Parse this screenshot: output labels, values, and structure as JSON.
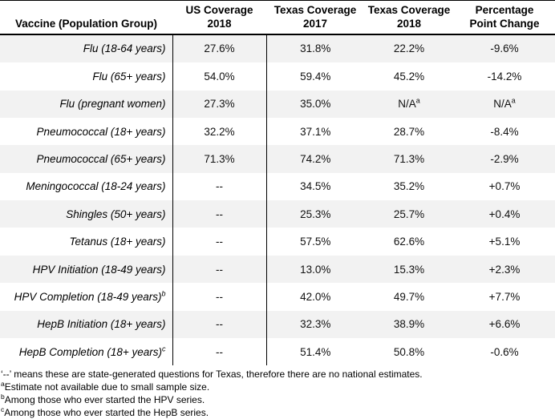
{
  "page": {
    "background_color": "#ffffff",
    "row_stripe_color": "#f2f2f2",
    "border_color": "#000000"
  },
  "table": {
    "headers": [
      "Vaccine (Population Group)",
      "US Coverage\n2018",
      "Texas Coverage\n2017",
      "Texas Coverage\n2018",
      "Percentage\nPoint Change"
    ],
    "rows": [
      {
        "vaccine": "Flu (18-64 years)",
        "vaccine_sup": "",
        "us_coverage_2018": "27.6%",
        "texas_coverage_2017": "31.8%",
        "texas_coverage_2018": "22.2%",
        "texas_2018_sup": "",
        "change": "-9.6%",
        "change_sup": ""
      },
      {
        "vaccine": "Flu (65+ years)",
        "vaccine_sup": "",
        "us_coverage_2018": "54.0%",
        "texas_coverage_2017": "59.4%",
        "texas_coverage_2018": "45.2%",
        "texas_2018_sup": "",
        "change": "-14.2%",
        "change_sup": ""
      },
      {
        "vaccine": "Flu (pregnant women)",
        "vaccine_sup": "",
        "us_coverage_2018": "27.3%",
        "texas_coverage_2017": "35.0%",
        "texas_coverage_2018": "N/A",
        "texas_2018_sup": "a",
        "change": "N/A",
        "change_sup": "a"
      },
      {
        "vaccine": "Pneumococcal (18+ years)",
        "vaccine_sup": "",
        "us_coverage_2018": "32.2%",
        "texas_coverage_2017": "37.1%",
        "texas_coverage_2018": "28.7%",
        "texas_2018_sup": "",
        "change": "-8.4%",
        "change_sup": ""
      },
      {
        "vaccine": "Pneumococcal (65+ years)",
        "vaccine_sup": "",
        "us_coverage_2018": "71.3%",
        "texas_coverage_2017": "74.2%",
        "texas_coverage_2018": "71.3%",
        "texas_2018_sup": "",
        "change": "-2.9%",
        "change_sup": ""
      },
      {
        "vaccine": "Meningococcal (18-24 years)",
        "vaccine_sup": "",
        "us_coverage_2018": "--",
        "texas_coverage_2017": "34.5%",
        "texas_coverage_2018": "35.2%",
        "texas_2018_sup": "",
        "change": "+0.7%",
        "change_sup": ""
      },
      {
        "vaccine": "Shingles (50+ years)",
        "vaccine_sup": "",
        "us_coverage_2018": "--",
        "texas_coverage_2017": "25.3%",
        "texas_coverage_2018": "25.7%",
        "texas_2018_sup": "",
        "change": "+0.4%",
        "change_sup": ""
      },
      {
        "vaccine": "Tetanus (18+ years)",
        "vaccine_sup": "",
        "us_coverage_2018": "--",
        "texas_coverage_2017": "57.5%",
        "texas_coverage_2018": "62.6%",
        "texas_2018_sup": "",
        "change": "+5.1%",
        "change_sup": ""
      },
      {
        "vaccine": "HPV Initiation (18-49 years)",
        "vaccine_sup": "",
        "us_coverage_2018": "--",
        "texas_coverage_2017": "13.0%",
        "texas_coverage_2018": "15.3%",
        "texas_2018_sup": "",
        "change": "+2.3%",
        "change_sup": ""
      },
      {
        "vaccine": "HPV Completion (18-49 years)",
        "vaccine_sup": "b",
        "us_coverage_2018": "--",
        "texas_coverage_2017": "42.0%",
        "texas_coverage_2018": "49.7%",
        "texas_2018_sup": "",
        "change": "+7.7%",
        "change_sup": ""
      },
      {
        "vaccine": "HepB Initiation (18+ years)",
        "vaccine_sup": "",
        "us_coverage_2018": "--",
        "texas_coverage_2017": "32.3%",
        "texas_coverage_2018": "38.9%",
        "texas_2018_sup": "",
        "change": "+6.6%",
        "change_sup": ""
      },
      {
        "vaccine": "HepB Completion (18+ years)",
        "vaccine_sup": "c",
        "us_coverage_2018": "--",
        "texas_coverage_2017": "51.4%",
        "texas_coverage_2018": "50.8%",
        "texas_2018_sup": "",
        "change": "-0.6%",
        "change_sup": ""
      }
    ]
  },
  "footnotes": [
    {
      "sup": "",
      "text": "‘--’ means these are state-generated questions for Texas, therefore there are no national estimates."
    },
    {
      "sup": "a",
      "text": "Estimate not available due to small sample size."
    },
    {
      "sup": "b",
      "text": "Among those who ever started the HPV series."
    },
    {
      "sup": "c",
      "text": "Among those who ever started the HepB series."
    }
  ]
}
